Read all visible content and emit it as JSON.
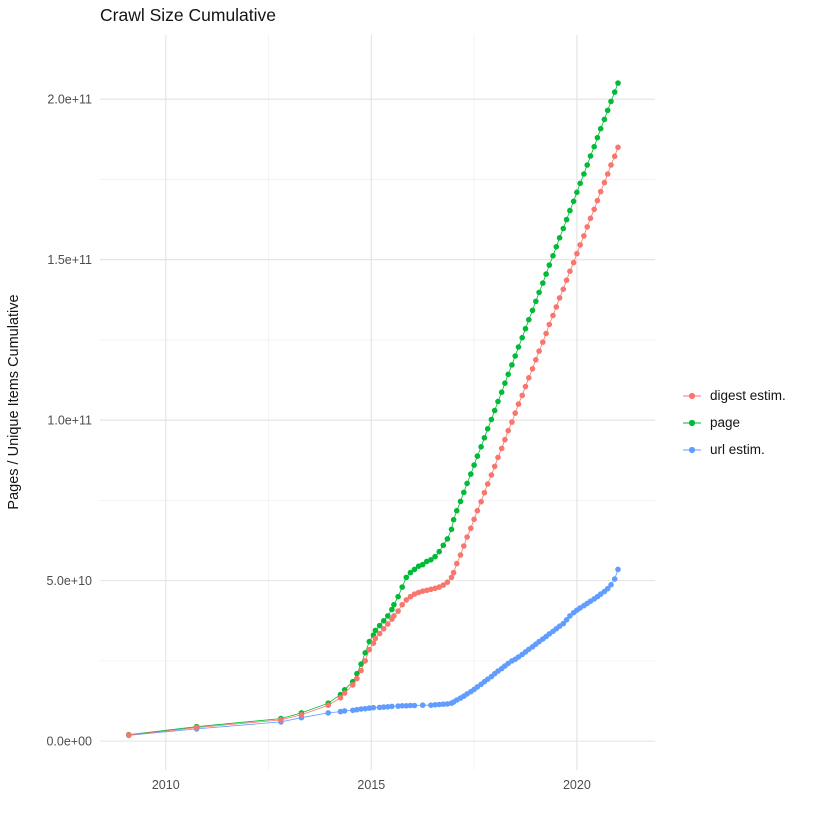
{
  "chart_data": {
    "type": "scatter",
    "title": "Crawl Size Cumulative",
    "xlabel": "",
    "ylabel": "Pages / Unique Items Cumulative",
    "legend_position": "right",
    "grid": true,
    "value_unit_note": "all y values in billions (1e9 items)",
    "xlim": [
      2008.4,
      2021.9
    ],
    "ylim_billions": [
      -9,
      220
    ],
    "x_ticks": [
      2010,
      2015,
      2020
    ],
    "x_tick_labels": [
      "2010",
      "2015",
      "2020"
    ],
    "x_minor_ticks": [
      2012.5,
      2017.5
    ],
    "y_ticks_billions": [
      0,
      50,
      100,
      150,
      200
    ],
    "y_tick_labels": [
      "0.0e+00",
      "5.0e+10",
      "1.0e+11",
      "1.5e+11",
      "2.0e+11"
    ],
    "y_minor_ticks_billions": [
      25,
      75,
      125,
      175
    ],
    "colors": {
      "background": "#FFFFFF",
      "grid_major": "#E3E3E3",
      "grid_minor": "#F1F1F1",
      "tick_text": "#4D4D4D",
      "title_text": "#141414"
    },
    "series": [
      {
        "name": "digest estim.",
        "color": "#F8766D",
        "points": [
          [
            2009.1,
            1.9
          ],
          [
            2010.75,
            4.2
          ],
          [
            2012.8,
            6.6
          ],
          [
            2013.3,
            8.2
          ],
          [
            2013.95,
            11.2
          ],
          [
            2014.25,
            13.5
          ],
          [
            2014.35,
            15.0
          ],
          [
            2014.55,
            17.5
          ],
          [
            2014.65,
            19.5
          ],
          [
            2014.75,
            22.0
          ],
          [
            2014.85,
            25.0
          ],
          [
            2014.95,
            28.5
          ],
          [
            2015.05,
            30.5
          ],
          [
            2015.1,
            32.0
          ],
          [
            2015.2,
            33.5
          ],
          [
            2015.3,
            35.0
          ],
          [
            2015.4,
            36.5
          ],
          [
            2015.5,
            38.0
          ],
          [
            2015.55,
            39.0
          ],
          [
            2015.65,
            40.5
          ],
          [
            2015.75,
            42.5
          ],
          [
            2015.85,
            44.0
          ],
          [
            2015.95,
            45.0
          ],
          [
            2016.05,
            45.8
          ],
          [
            2016.15,
            46.3
          ],
          [
            2016.25,
            46.7
          ],
          [
            2016.35,
            47.0
          ],
          [
            2016.45,
            47.3
          ],
          [
            2016.55,
            47.6
          ],
          [
            2016.65,
            48.0
          ],
          [
            2016.75,
            48.6
          ],
          [
            2016.85,
            49.5
          ],
          [
            2016.95,
            51.0
          ],
          [
            2017.0,
            52.5
          ],
          [
            2017.08,
            55.3
          ],
          [
            2017.17,
            58.0
          ],
          [
            2017.25,
            60.8
          ],
          [
            2017.33,
            63.6
          ],
          [
            2017.42,
            66.3
          ],
          [
            2017.5,
            69.1
          ],
          [
            2017.58,
            71.8
          ],
          [
            2017.67,
            74.6
          ],
          [
            2017.75,
            77.4
          ],
          [
            2017.83,
            80.1
          ],
          [
            2017.92,
            82.9
          ],
          [
            2018.0,
            85.6
          ],
          [
            2018.08,
            88.4
          ],
          [
            2018.17,
            91.2
          ],
          [
            2018.25,
            93.9
          ],
          [
            2018.33,
            96.7
          ],
          [
            2018.42,
            99.4
          ],
          [
            2018.5,
            102.2
          ],
          [
            2018.58,
            105.0
          ],
          [
            2018.67,
            107.7
          ],
          [
            2018.75,
            110.5
          ],
          [
            2018.83,
            113.2
          ],
          [
            2018.92,
            116.0
          ],
          [
            2019.0,
            118.8
          ],
          [
            2019.08,
            121.5
          ],
          [
            2019.17,
            124.3
          ],
          [
            2019.25,
            127.0
          ],
          [
            2019.33,
            129.8
          ],
          [
            2019.42,
            132.6
          ],
          [
            2019.5,
            135.3
          ],
          [
            2019.58,
            138.1
          ],
          [
            2019.67,
            140.8
          ],
          [
            2019.75,
            143.6
          ],
          [
            2019.83,
            146.4
          ],
          [
            2019.92,
            149.1
          ],
          [
            2020.0,
            151.9
          ],
          [
            2020.08,
            154.6
          ],
          [
            2020.17,
            157.4
          ],
          [
            2020.25,
            160.2
          ],
          [
            2020.33,
            162.9
          ],
          [
            2020.42,
            165.7
          ],
          [
            2020.5,
            168.4
          ],
          [
            2020.58,
            171.2
          ],
          [
            2020.67,
            174.0
          ],
          [
            2020.75,
            176.7
          ],
          [
            2020.83,
            179.5
          ],
          [
            2020.92,
            182.2
          ],
          [
            2021.0,
            185.0
          ]
        ]
      },
      {
        "name": "page",
        "color": "#00BA38",
        "points": [
          [
            2009.1,
            2.0
          ],
          [
            2010.75,
            4.5
          ],
          [
            2012.8,
            7.0
          ],
          [
            2013.3,
            8.8
          ],
          [
            2013.95,
            11.8
          ],
          [
            2014.25,
            14.5
          ],
          [
            2014.35,
            16.0
          ],
          [
            2014.55,
            18.5
          ],
          [
            2014.65,
            21.0
          ],
          [
            2014.75,
            24.0
          ],
          [
            2014.85,
            27.5
          ],
          [
            2014.95,
            31.0
          ],
          [
            2015.05,
            33.0
          ],
          [
            2015.1,
            34.5
          ],
          [
            2015.2,
            36.0
          ],
          [
            2015.3,
            37.5
          ],
          [
            2015.4,
            39.0
          ],
          [
            2015.5,
            41.0
          ],
          [
            2015.55,
            42.5
          ],
          [
            2015.65,
            45.0
          ],
          [
            2015.75,
            48.0
          ],
          [
            2015.85,
            51.0
          ],
          [
            2015.95,
            52.5
          ],
          [
            2016.05,
            53.5
          ],
          [
            2016.15,
            54.5
          ],
          [
            2016.25,
            55.0
          ],
          [
            2016.35,
            56.0
          ],
          [
            2016.45,
            56.5
          ],
          [
            2016.55,
            57.5
          ],
          [
            2016.65,
            59.0
          ],
          [
            2016.75,
            61.0
          ],
          [
            2016.85,
            63.0
          ],
          [
            2016.95,
            66.0
          ],
          [
            2017.0,
            69.0
          ],
          [
            2017.08,
            71.8
          ],
          [
            2017.17,
            74.7
          ],
          [
            2017.25,
            77.5
          ],
          [
            2017.33,
            80.3
          ],
          [
            2017.42,
            83.2
          ],
          [
            2017.5,
            86.0
          ],
          [
            2017.58,
            88.8
          ],
          [
            2017.67,
            91.7
          ],
          [
            2017.75,
            94.5
          ],
          [
            2017.83,
            97.3
          ],
          [
            2017.92,
            100.2
          ],
          [
            2018.0,
            103.0
          ],
          [
            2018.08,
            105.8
          ],
          [
            2018.17,
            108.7
          ],
          [
            2018.25,
            111.5
          ],
          [
            2018.33,
            114.3
          ],
          [
            2018.42,
            117.2
          ],
          [
            2018.5,
            120.0
          ],
          [
            2018.58,
            122.8
          ],
          [
            2018.67,
            125.7
          ],
          [
            2018.75,
            128.5
          ],
          [
            2018.83,
            131.3
          ],
          [
            2018.92,
            134.2
          ],
          [
            2019.0,
            137.0
          ],
          [
            2019.08,
            139.8
          ],
          [
            2019.17,
            142.7
          ],
          [
            2019.25,
            145.5
          ],
          [
            2019.33,
            148.3
          ],
          [
            2019.42,
            151.2
          ],
          [
            2019.5,
            154.0
          ],
          [
            2019.58,
            156.8
          ],
          [
            2019.67,
            159.7
          ],
          [
            2019.75,
            162.5
          ],
          [
            2019.83,
            165.3
          ],
          [
            2019.92,
            168.2
          ],
          [
            2020.0,
            171.0
          ],
          [
            2020.08,
            173.8
          ],
          [
            2020.17,
            176.7
          ],
          [
            2020.25,
            179.5
          ],
          [
            2020.33,
            182.3
          ],
          [
            2020.42,
            185.2
          ],
          [
            2020.5,
            188.0
          ],
          [
            2020.58,
            190.8
          ],
          [
            2020.67,
            193.7
          ],
          [
            2020.75,
            196.5
          ],
          [
            2020.83,
            199.3
          ],
          [
            2020.92,
            202.2
          ],
          [
            2021.0,
            205.0
          ]
        ]
      },
      {
        "name": "url estim.",
        "color": "#619CFF",
        "points": [
          [
            2009.1,
            1.8
          ],
          [
            2010.75,
            3.8
          ],
          [
            2012.8,
            6.0
          ],
          [
            2013.3,
            7.3
          ],
          [
            2013.95,
            8.8
          ],
          [
            2014.25,
            9.2
          ],
          [
            2014.35,
            9.4
          ],
          [
            2014.55,
            9.6
          ],
          [
            2014.65,
            9.8
          ],
          [
            2014.75,
            10.0
          ],
          [
            2014.85,
            10.1
          ],
          [
            2014.95,
            10.3
          ],
          [
            2015.05,
            10.4
          ],
          [
            2015.2,
            10.5
          ],
          [
            2015.3,
            10.6
          ],
          [
            2015.4,
            10.7
          ],
          [
            2015.5,
            10.8
          ],
          [
            2015.65,
            10.9
          ],
          [
            2015.75,
            11.0
          ],
          [
            2015.85,
            11.0
          ],
          [
            2015.95,
            11.1
          ],
          [
            2016.05,
            11.1
          ],
          [
            2016.25,
            11.2
          ],
          [
            2016.45,
            11.2
          ],
          [
            2016.55,
            11.3
          ],
          [
            2016.65,
            11.4
          ],
          [
            2016.75,
            11.5
          ],
          [
            2016.85,
            11.6
          ],
          [
            2016.95,
            11.8
          ],
          [
            2017.0,
            12.2
          ],
          [
            2017.08,
            12.8
          ],
          [
            2017.17,
            13.4
          ],
          [
            2017.25,
            14.0
          ],
          [
            2017.33,
            14.7
          ],
          [
            2017.42,
            15.4
          ],
          [
            2017.5,
            16.1
          ],
          [
            2017.58,
            16.9
          ],
          [
            2017.67,
            17.7
          ],
          [
            2017.75,
            18.5
          ],
          [
            2017.83,
            19.3
          ],
          [
            2017.92,
            20.1
          ],
          [
            2018.0,
            21.0
          ],
          [
            2018.08,
            21.8
          ],
          [
            2018.17,
            22.6
          ],
          [
            2018.25,
            23.4
          ],
          [
            2018.33,
            24.2
          ],
          [
            2018.42,
            25.0
          ],
          [
            2018.5,
            25.5
          ],
          [
            2018.58,
            26.2
          ],
          [
            2018.67,
            27.0
          ],
          [
            2018.75,
            27.8
          ],
          [
            2018.83,
            28.6
          ],
          [
            2018.92,
            29.4
          ],
          [
            2019.0,
            30.2
          ],
          [
            2019.08,
            31.0
          ],
          [
            2019.17,
            31.8
          ],
          [
            2019.25,
            32.6
          ],
          [
            2019.33,
            33.4
          ],
          [
            2019.42,
            34.2
          ],
          [
            2019.5,
            35.0
          ],
          [
            2019.58,
            35.8
          ],
          [
            2019.67,
            36.6
          ],
          [
            2019.75,
            37.8
          ],
          [
            2019.83,
            39.0
          ],
          [
            2019.92,
            40.0
          ],
          [
            2020.0,
            40.8
          ],
          [
            2020.08,
            41.5
          ],
          [
            2020.17,
            42.2
          ],
          [
            2020.25,
            42.9
          ],
          [
            2020.33,
            43.6
          ],
          [
            2020.42,
            44.3
          ],
          [
            2020.5,
            45.0
          ],
          [
            2020.58,
            45.8
          ],
          [
            2020.67,
            46.6
          ],
          [
            2020.75,
            47.5
          ],
          [
            2020.83,
            48.7
          ],
          [
            2020.92,
            50.5
          ],
          [
            2021.0,
            53.5
          ]
        ]
      }
    ]
  }
}
